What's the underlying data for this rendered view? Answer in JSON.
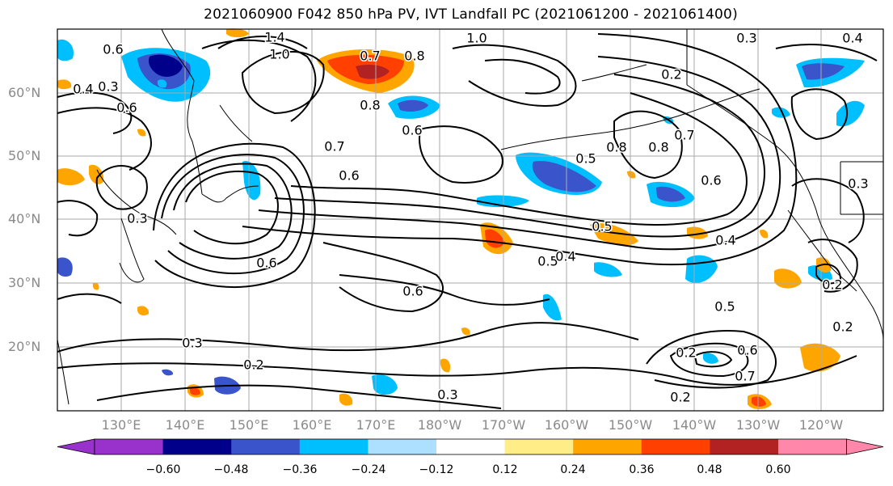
{
  "title": "2021060900 F042 850 hPa PV, IVT Landfall PC (2021061200 - 2021061400)",
  "lat_labels": [
    "60°N",
    "50°N",
    "40°N",
    "30°N",
    "20°N"
  ],
  "lon_labels": [
    "130°E",
    "140°E",
    "150°E",
    "160°E",
    "170°E",
    "180°W",
    "170°W",
    "160°W",
    "150°W",
    "140°W",
    "130°W",
    "120°W"
  ],
  "colorbar": {
    "colors": [
      "#9932CC",
      "#00008B",
      "#3A55CC",
      "#00BFFF",
      "#ADDFFF",
      "#FFFFFF",
      "#FFEE88",
      "#FFA500",
      "#FF4000",
      "#B22222",
      "#FF88AA"
    ],
    "ticks": [
      "−0.60",
      "−0.48",
      "−0.36",
      "−0.24",
      "−0.12",
      "0.12",
      "0.24",
      "0.36",
      "0.48",
      "0.60"
    ]
  },
  "contour_labels": [
    "1.4",
    "1.0",
    "1.0",
    "0.6",
    "0.3",
    "0.4",
    "0.6",
    "0.7",
    "0.8",
    "0.8",
    "0.6",
    "0.7",
    "0.6",
    "0.5",
    "0.8",
    "0.2",
    "0.4",
    "0.3",
    "0.6",
    "0.8",
    "0.7",
    "0.5",
    "0.3",
    "0.6",
    "0.5",
    "0.4",
    "0.6",
    "0.3",
    "0.2",
    "0.3",
    "0.2",
    "0.5",
    "0.6",
    "0.7",
    "0.2",
    "0.2",
    "0.2",
    "0.4",
    "0.3"
  ]
}
